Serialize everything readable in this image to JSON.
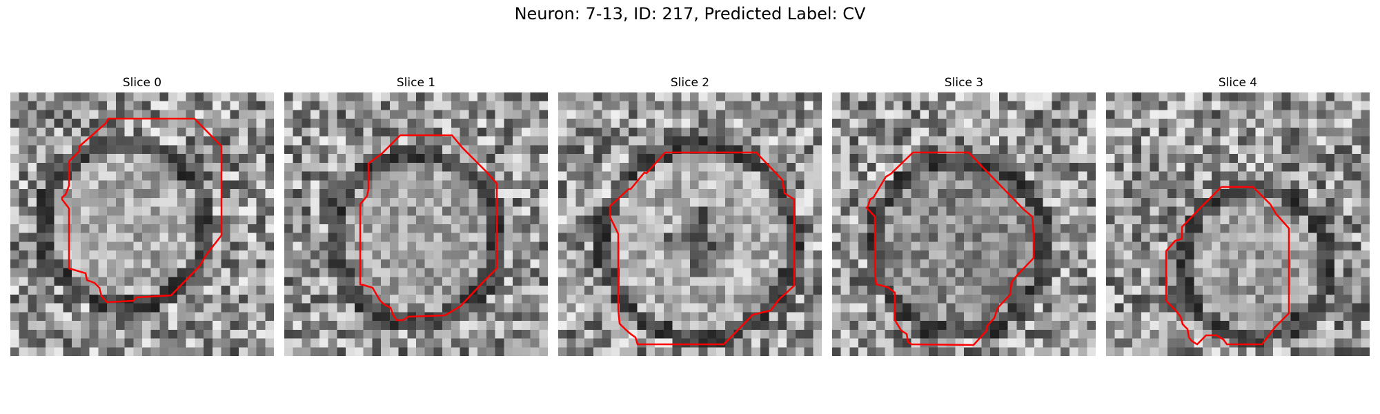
{
  "figure": {
    "title": "Neuron: 7-13, ID: 217, Predicted Label: CV",
    "contour_color": "#ff0000",
    "panels": [
      {
        "title": "Slice 0"
      },
      {
        "title": "Slice 1"
      },
      {
        "title": "Slice 2"
      },
      {
        "title": "Slice 3"
      },
      {
        "title": "Slice 4"
      }
    ]
  }
}
